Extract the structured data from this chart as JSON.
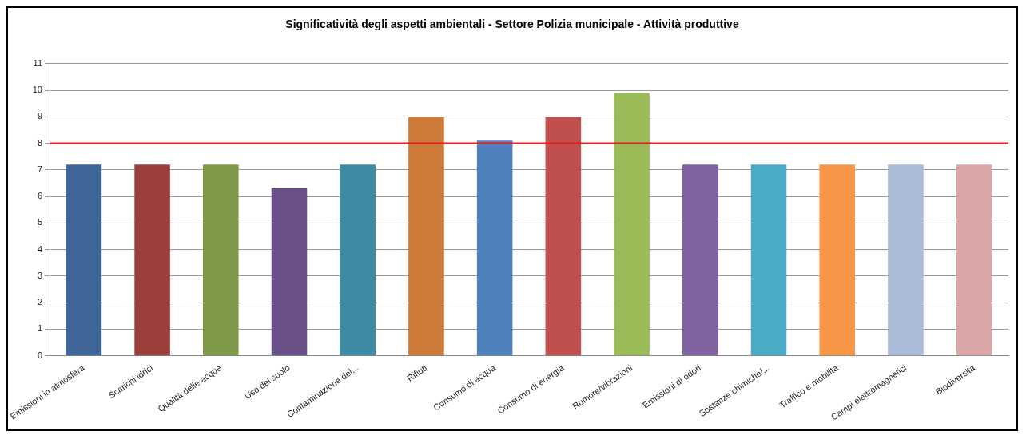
{
  "chart_data": {
    "type": "bar",
    "title": "Significatività degli aspetti ambientali - Settore Polizia municipale - Attività produttive",
    "categories": [
      "Emissioni in atmosfera",
      "Scarichi idrici",
      "Qualità delle acque",
      "Uso del suolo",
      "Contaminazione del...",
      "Rifiuti",
      "Consumo di acqua",
      "Consumo di energia",
      "Rumore/vibrazioni",
      "Emissioni di odori",
      "Sostanze chimiche/...",
      "Traffico e mobilità",
      "Campi elettromagnetici",
      "Biodiversità"
    ],
    "values": [
      7.2,
      7.2,
      7.2,
      6.3,
      7.2,
      9,
      8.1,
      9,
      9.9,
      7.2,
      7.2,
      7.2,
      7.2,
      7.2
    ],
    "colors": [
      "#3e6699",
      "#9b3f3d",
      "#7e9a48",
      "#6a5089",
      "#3d8ca3",
      "#cb7a37",
      "#4f81bd",
      "#c0504d",
      "#9bbb59",
      "#8064a2",
      "#4bacc6",
      "#f79646",
      "#aabad7",
      "#d9a7a8"
    ],
    "ylim": [
      0,
      11
    ],
    "yticks": [
      0,
      1,
      2,
      3,
      4,
      5,
      6,
      7,
      8,
      9,
      10,
      11
    ],
    "grid": "y",
    "legend": false,
    "ref_lines": [
      {
        "axis": "y",
        "value": 8,
        "color": "#e02020"
      }
    ]
  }
}
